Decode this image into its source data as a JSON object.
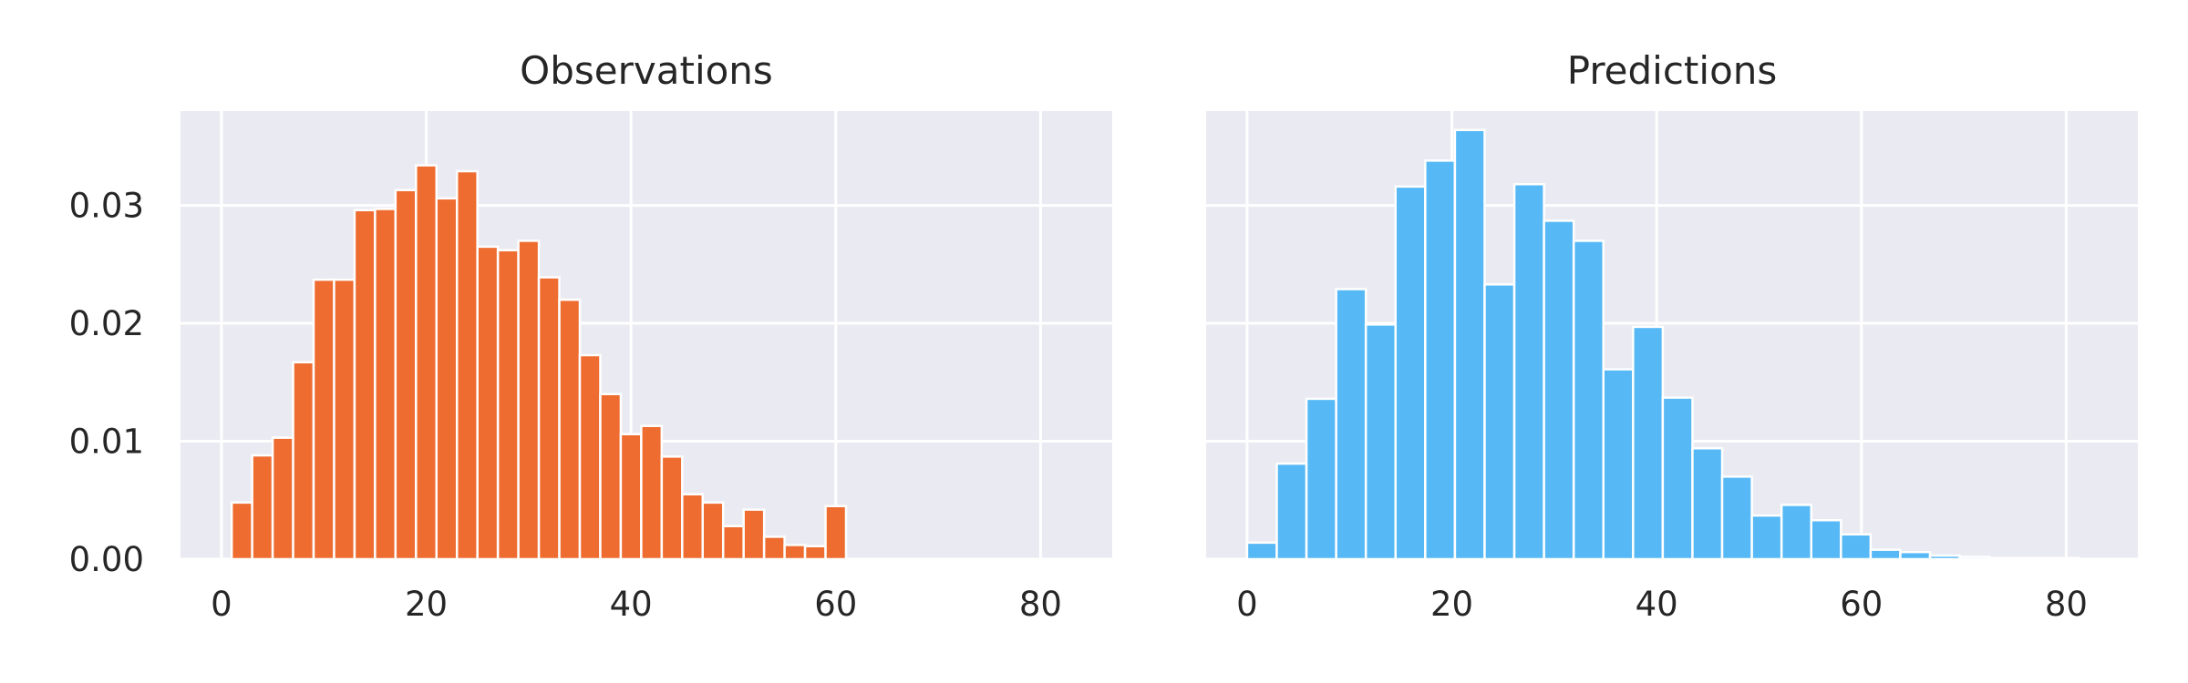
{
  "chart_data": [
    {
      "type": "bar",
      "title": "Observations",
      "xlabel": "",
      "ylabel": "",
      "xlim": [
        -4,
        87
      ],
      "ylim": [
        0,
        0.038
      ],
      "x_ticks": [
        0,
        20,
        40,
        60,
        80
      ],
      "y_ticks": [
        0.0,
        0.01,
        0.02,
        0.03
      ],
      "y_tick_labels": [
        "0.00",
        "0.01",
        "0.02",
        "0.03"
      ],
      "grid": true,
      "color": "#EE6C30",
      "bin_width": 2,
      "bin_start": 1,
      "values": [
        0.0048,
        0.0088,
        0.0103,
        0.0167,
        0.0237,
        0.0237,
        0.0296,
        0.0297,
        0.0313,
        0.0334,
        0.0306,
        0.0329,
        0.0265,
        0.0262,
        0.027,
        0.0239,
        0.022,
        0.0173,
        0.014,
        0.0106,
        0.0113,
        0.0087,
        0.0055,
        0.0048,
        0.0028,
        0.0042,
        0.0019,
        0.0012,
        0.0011,
        0.0045
      ]
    },
    {
      "type": "bar",
      "title": "Predictions",
      "xlabel": "",
      "ylabel": "",
      "xlim": [
        -4,
        87
      ],
      "ylim": [
        0,
        0.038
      ],
      "x_ticks": [
        0,
        20,
        40,
        60,
        80
      ],
      "y_ticks": [
        0.0,
        0.01,
        0.02,
        0.03
      ],
      "y_tick_labels": [
        "",
        "",
        "",
        ""
      ],
      "grid": true,
      "color": "#56B8F5",
      "bin_width": 2.9,
      "bin_start": 0,
      "values": [
        0.0014,
        0.0081,
        0.0136,
        0.0229,
        0.0199,
        0.0316,
        0.0338,
        0.0364,
        0.0233,
        0.0318,
        0.0287,
        0.027,
        0.0161,
        0.0197,
        0.0137,
        0.0094,
        0.007,
        0.0037,
        0.0046,
        0.0033,
        0.0021,
        0.0008,
        0.0006,
        0.0003,
        0.0002,
        0.0001,
        0.0001,
        0.0001
      ]
    }
  ]
}
